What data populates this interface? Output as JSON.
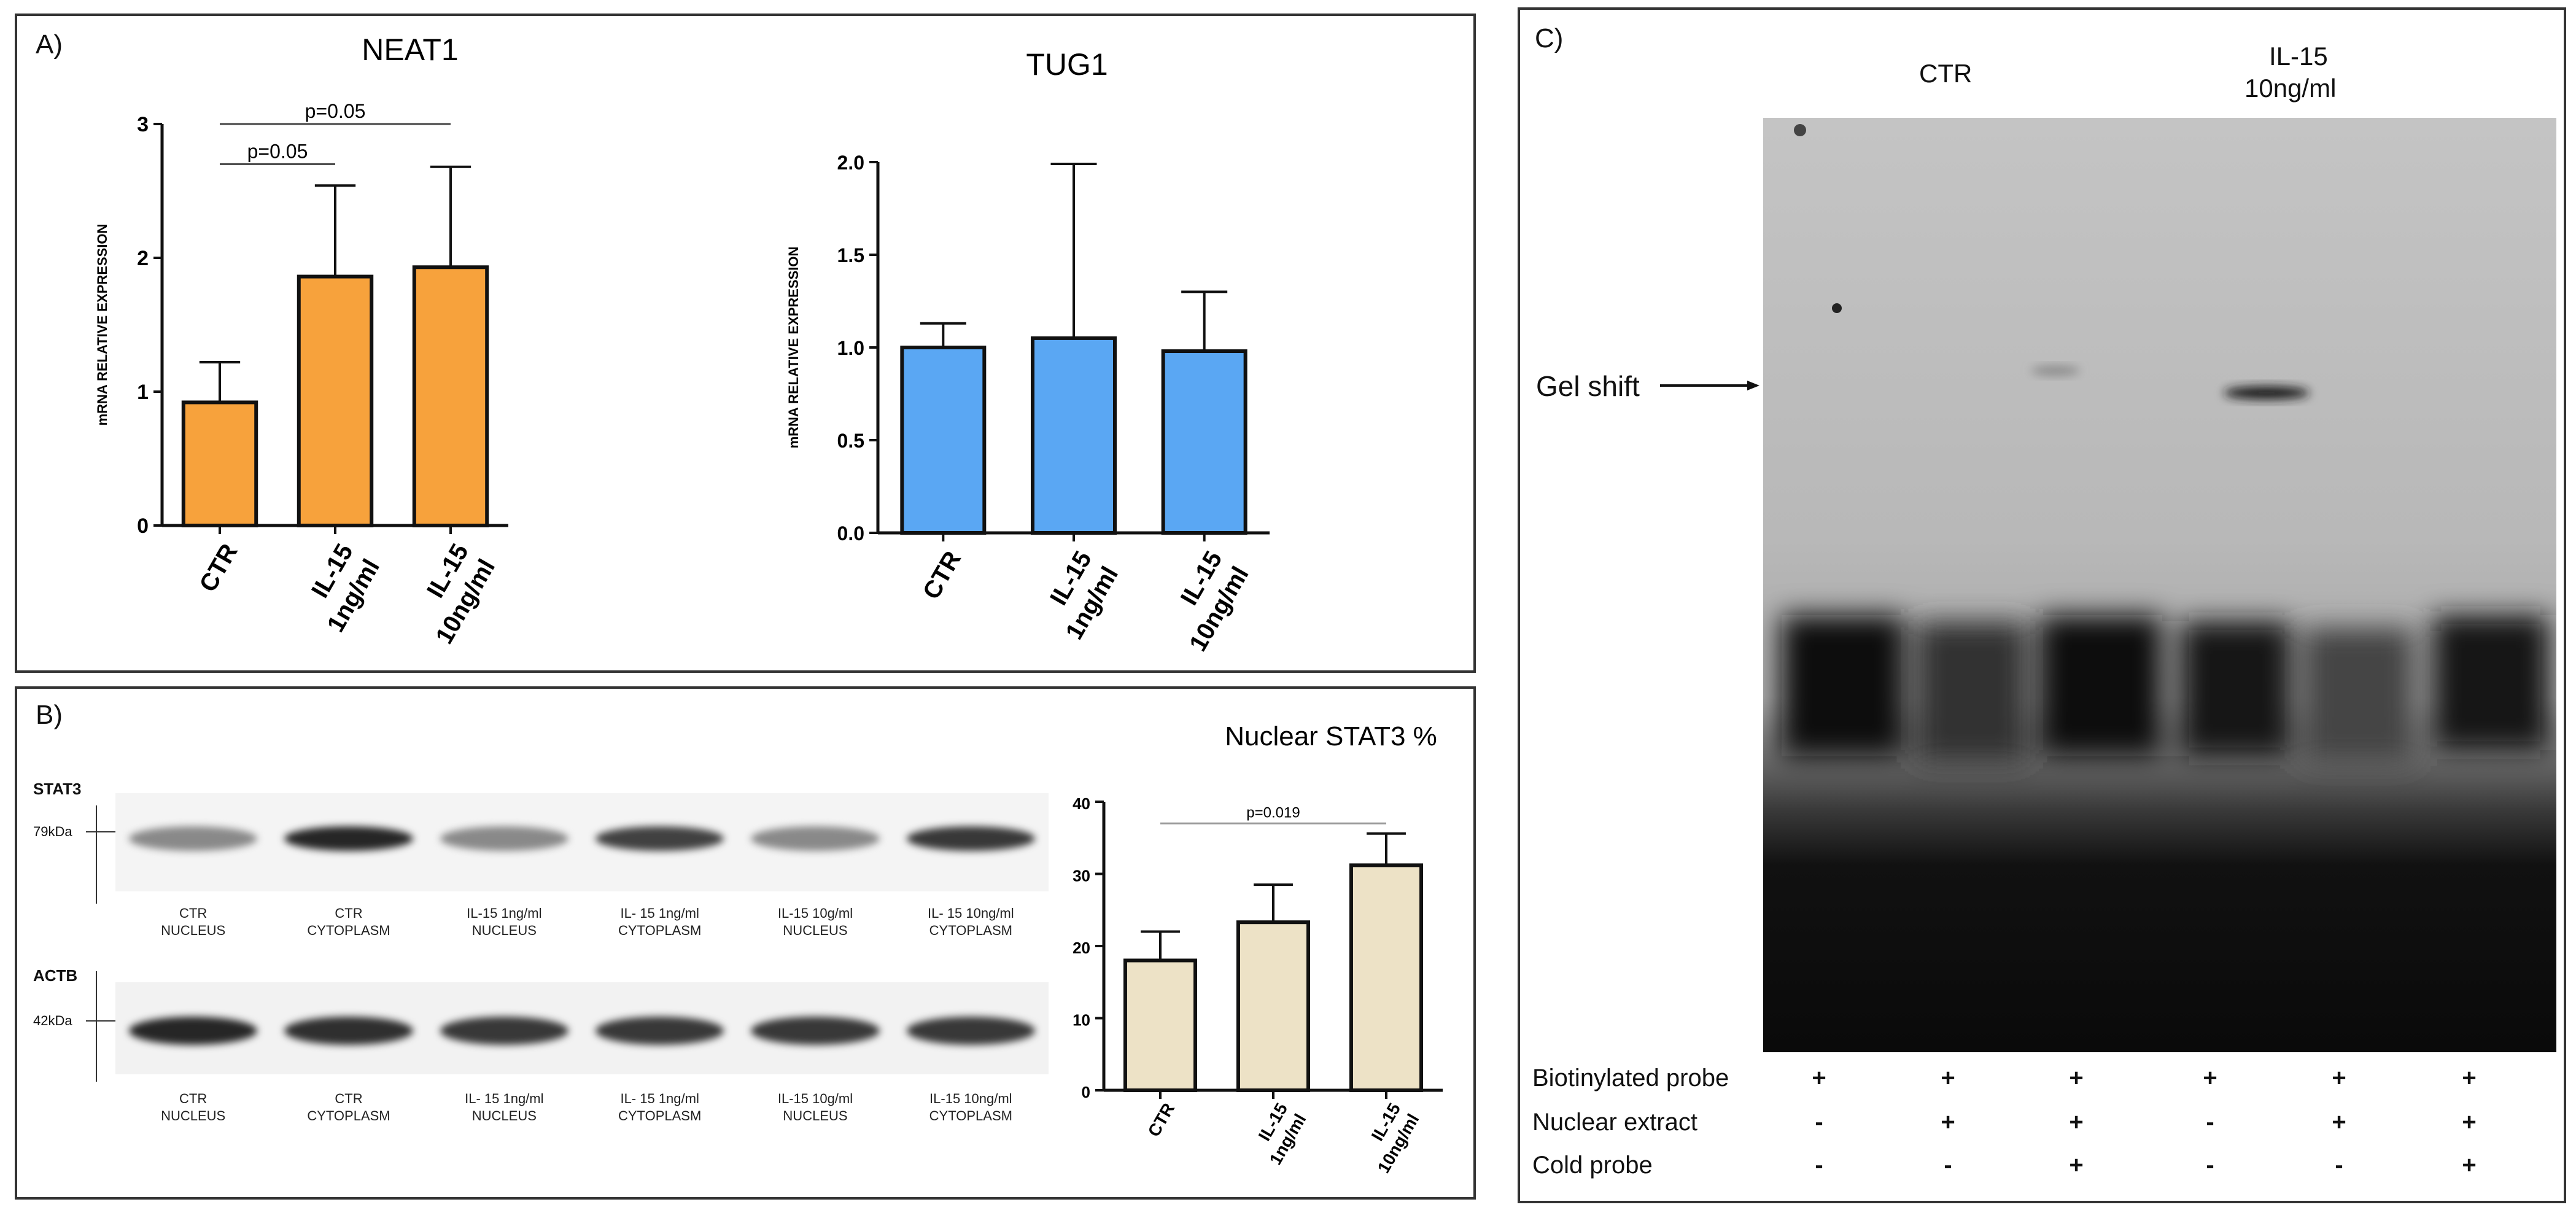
{
  "panel_a": {
    "letter": "A)",
    "charts": [
      {
        "type": "bar",
        "title": "NEAT1",
        "ylabel": "mRNA RELATIVE EXPRESSION",
        "categories": [
          "CTR",
          "IL-15 1ng/ml",
          "IL-15 10ng/ml"
        ],
        "category_lines": [
          [
            "CTR"
          ],
          [
            "IL-15",
            "1ng/ml"
          ],
          [
            "IL-15",
            "10ng/ml"
          ]
        ],
        "values": [
          0.92,
          1.86,
          1.93
        ],
        "errors": [
          0.3,
          0.68,
          0.75
        ],
        "ylim": [
          0,
          3
        ],
        "yticks": [
          "0",
          "1",
          "2",
          "3"
        ],
        "color": "#f7a23c",
        "annotations": [
          {
            "text": "p=0.05",
            "from": 0,
            "to": 1,
            "y": 2.7
          },
          {
            "text": "p=0.05",
            "from": 0,
            "to": 2,
            "y": 3.0
          }
        ]
      },
      {
        "type": "bar",
        "title": "TUG1",
        "ylabel": "mRNA RELATIVE EXPRESSION",
        "categories": [
          "CTR",
          "IL-15 1ng/ml",
          "IL-15 10ng/ml"
        ],
        "category_lines": [
          [
            "CTR"
          ],
          [
            "IL-15",
            "1ng/ml"
          ],
          [
            "IL-15",
            "10ng/ml"
          ]
        ],
        "values": [
          1.0,
          1.05,
          0.98
        ],
        "errors": [
          0.13,
          0.94,
          0.32
        ],
        "ylim": [
          0,
          2
        ],
        "yticks": [
          "0.0",
          "0.5",
          "1.0",
          "1.5",
          "2.0"
        ],
        "color": "#5aa7f3",
        "annotations": []
      }
    ]
  },
  "panel_b": {
    "letter": "B)",
    "blot_rows": [
      {
        "name": "STAT3",
        "kda": "79kDa"
      },
      {
        "name": "ACTB",
        "kda": "42kDa"
      }
    ],
    "stat3_labels": [
      [
        "CTR",
        "NUCLEUS"
      ],
      [
        "CTR",
        "CYTOPLASM"
      ],
      [
        "IL-15 1ng/ml",
        "NUCLEUS"
      ],
      [
        "IL- 15 1ng/ml",
        "CYTOPLASM"
      ],
      [
        "IL-15 10g/ml",
        "NUCLEUS"
      ],
      [
        "IL- 15 10ng/ml",
        "CYTOPLASM"
      ]
    ],
    "actb_labels": [
      [
        "CTR",
        "NUCLEUS"
      ],
      [
        "CTR",
        "CYTOPLASM"
      ],
      [
        "IL- 15 1ng/ml",
        "NUCLEUS"
      ],
      [
        "IL- 15 1ng/ml",
        "CYTOPLASM"
      ],
      [
        "IL-15 10g/ml",
        "NUCLEUS"
      ],
      [
        "IL-15 10ng/ml",
        "CYTOPLASM"
      ]
    ],
    "stat3_band_intensity": [
      0.35,
      0.9,
      0.35,
      0.75,
      0.35,
      0.8
    ],
    "actb_band_intensity": [
      0.9,
      0.85,
      0.8,
      0.8,
      0.8,
      0.8
    ],
    "chart": {
      "type": "bar",
      "title": "Nuclear STAT3 %",
      "categories": [
        "CTR",
        "IL-15 1ng/ml",
        "IL-15 10ng/ml"
      ],
      "category_lines": [
        [
          "CTR"
        ],
        [
          "IL-15",
          "1ng/ml"
        ],
        [
          "IL-15",
          "10ng/ml"
        ]
      ],
      "values": [
        18,
        23.3,
        31.2
      ],
      "errors": [
        4,
        5.2,
        4.4
      ],
      "ylim": [
        0,
        40
      ],
      "yticks": [
        "0",
        "10",
        "20",
        "30",
        "40"
      ],
      "color": "#ede2c6",
      "annotations": [
        {
          "text": "p=0.019",
          "from": 0,
          "to": 2,
          "y": 37
        }
      ]
    }
  },
  "panel_c": {
    "letter": "C)",
    "groups": [
      {
        "label": "CTR"
      },
      {
        "label_lines": [
          "IL-15",
          "10ng/ml"
        ]
      }
    ],
    "gel_shift_label": "Gel shift",
    "table": [
      {
        "label": "Biotinylated probe",
        "values": [
          "+",
          "+",
          "+",
          "+",
          "+",
          "+"
        ]
      },
      {
        "label": "Nuclear extract",
        "values": [
          "-",
          "+",
          "+",
          "-",
          "+",
          "+"
        ]
      },
      {
        "label": "Cold probe",
        "values": [
          "-",
          "-",
          "+",
          "-",
          "-",
          "+"
        ]
      }
    ]
  }
}
